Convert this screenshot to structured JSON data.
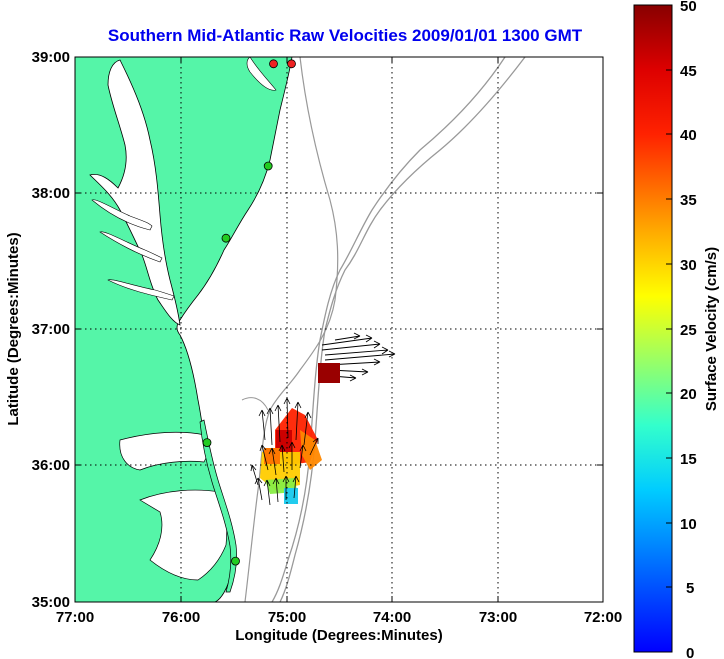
{
  "title": "Southern Mid-Atlantic Raw Velocities 2009/01/01 1300 GMT",
  "x_axis": {
    "label": "Longitude (Degrees:Minutes)",
    "ticks": [
      "77:00",
      "76:00",
      "75:00",
      "74:00",
      "73:00",
      "72:00"
    ]
  },
  "y_axis": {
    "label": "Latitude (Degrees:Minutes)",
    "ticks": [
      "39:00",
      "38:00",
      "37:00",
      "36:00",
      "35:00"
    ]
  },
  "colorbar": {
    "label": "Surface Velocity (cm/s)",
    "ticks": [
      "50",
      "45",
      "40",
      "35",
      "30",
      "25",
      "20",
      "15",
      "10",
      "5",
      "0"
    ],
    "min": 0,
    "max": 50
  },
  "colors": {
    "land": "#55f5a8",
    "title": "#0000ee",
    "bathymetry": "#999999",
    "station_green": "#22cc22",
    "station_red": "#ee2222"
  },
  "stations": [
    {
      "lon": -75.12,
      "lat": 38.95,
      "status": "red"
    },
    {
      "lon": -74.95,
      "lat": 38.95,
      "status": "red"
    },
    {
      "lon": -75.17,
      "lat": 38.2,
      "status": "green"
    },
    {
      "lon": -75.57,
      "lat": 37.67,
      "status": "green"
    },
    {
      "lon": -75.75,
      "lat": 36.17,
      "status": "green"
    },
    {
      "lon": -75.48,
      "lat": 35.3,
      "status": "green"
    }
  ]
}
